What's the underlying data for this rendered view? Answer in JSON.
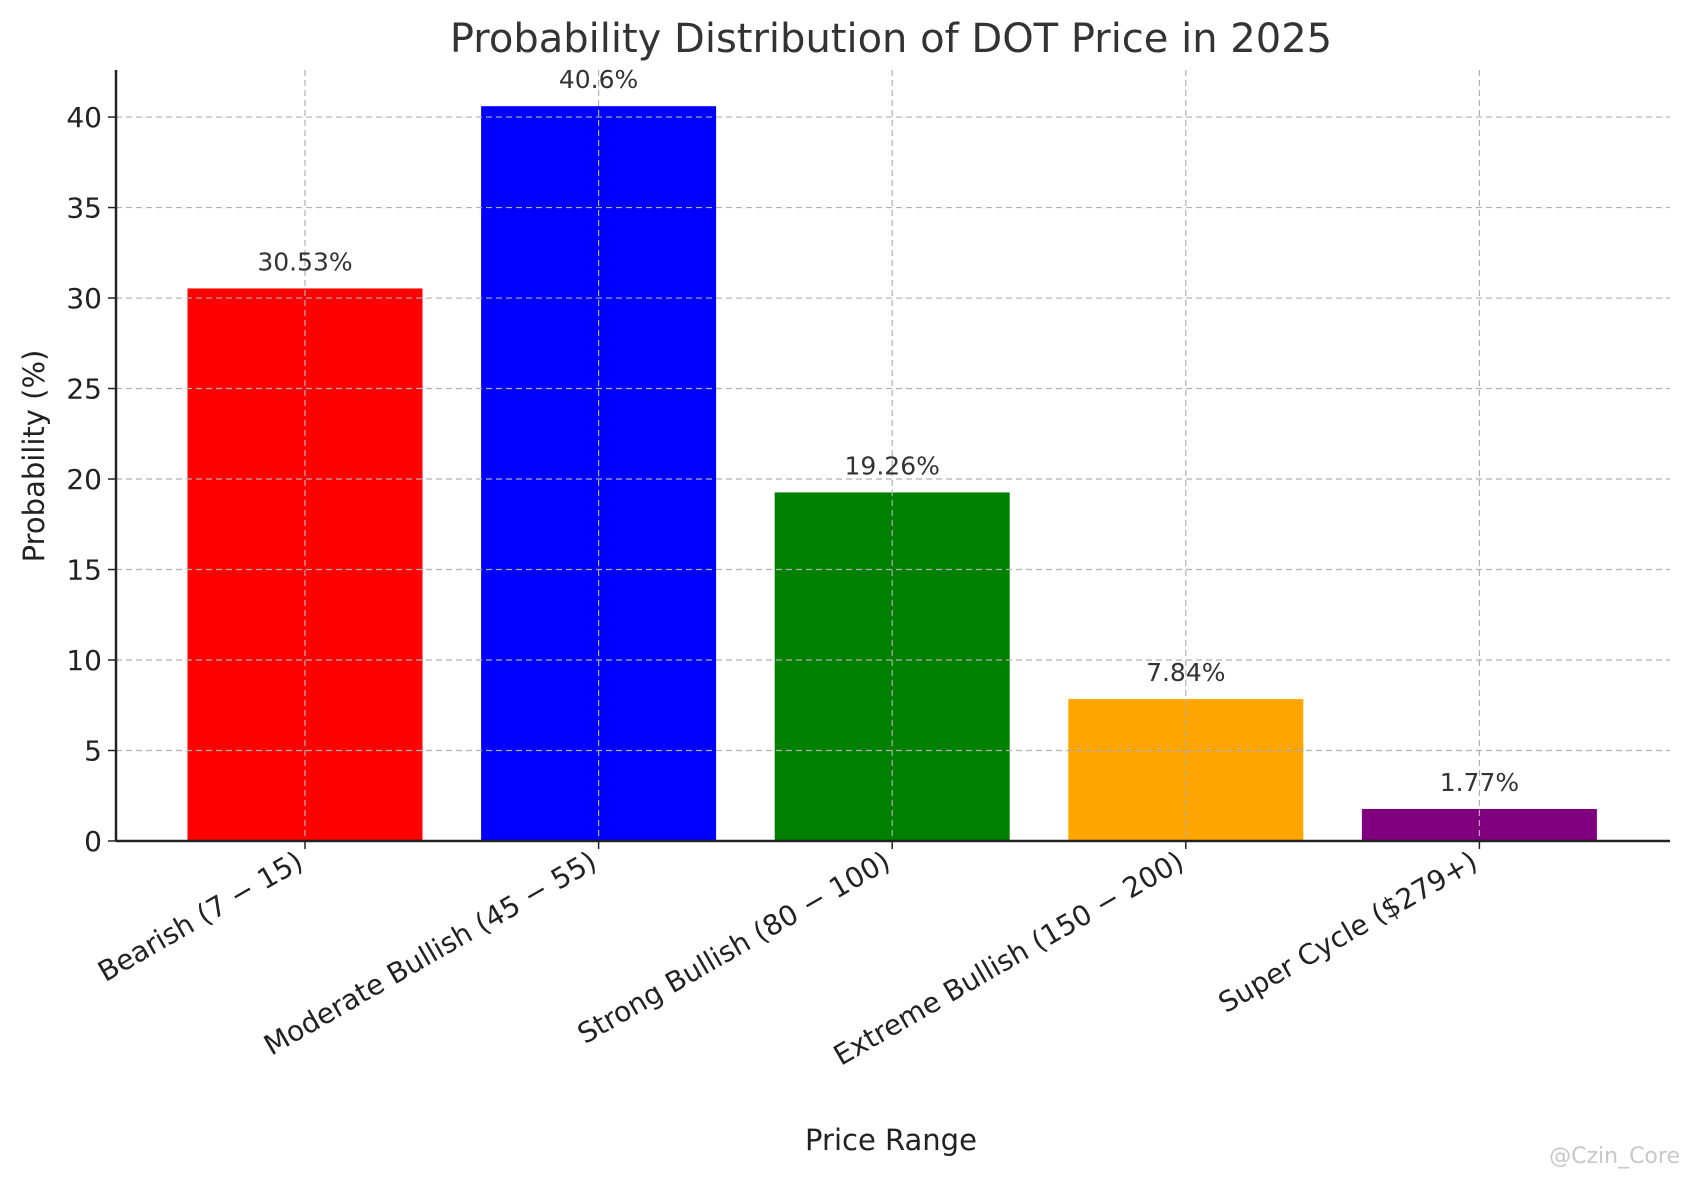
{
  "watermark": "@Czin_Core",
  "chart_data": {
    "type": "bar",
    "title": "Probability Distribution of DOT Price in 2025",
    "xlabel": "Price Range",
    "ylabel": "Probability (%)",
    "categories": [
      "Bearish (7 − 15)",
      "Moderate Bullish (45 − 55)",
      "Strong Bullish (80 − 100)",
      "Extreme Bullish (150 − 200)",
      "Super Cycle ($279+)"
    ],
    "values": [
      30.53,
      40.6,
      19.26,
      7.84,
      1.77
    ],
    "data_labels": [
      "30.53%",
      "40.6%",
      "19.26%",
      "7.84%",
      "1.77%"
    ],
    "colors": [
      "#ff0000",
      "#0000ff",
      "#008000",
      "#ffa500",
      "#800080"
    ],
    "yticks": [
      0,
      5,
      10,
      15,
      20,
      25,
      30,
      35,
      40
    ],
    "ylim": [
      0,
      42.6
    ],
    "grid": true
  }
}
